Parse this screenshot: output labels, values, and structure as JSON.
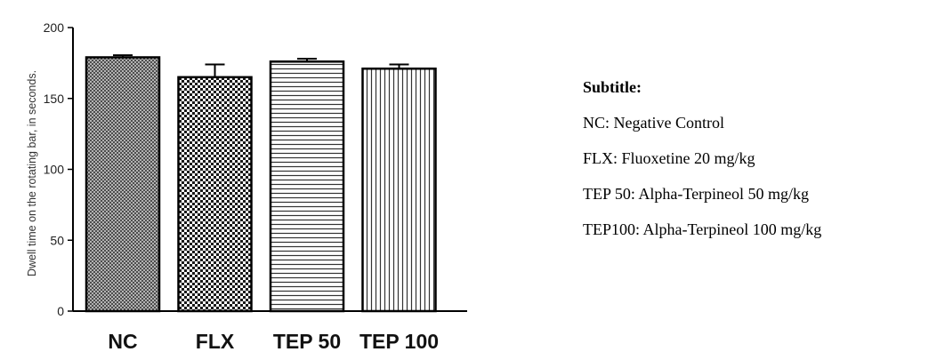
{
  "chart_data": {
    "type": "bar",
    "categories": [
      "NC",
      "FLX",
      "TEP 50",
      "TEP 100"
    ],
    "values": [
      179,
      165,
      176,
      171
    ],
    "errors": [
      1.5,
      9,
      2,
      3
    ],
    "patterns": [
      "dense-crosshatch",
      "checker",
      "horizontal-lines",
      "vertical-lines"
    ],
    "ylabel": "Dwell time on the rotating bar, in seconds.",
    "xlabel": "",
    "ylim": [
      0,
      200
    ],
    "yticks": [
      0,
      50,
      100,
      150,
      200
    ],
    "ytick_labels": [
      "0",
      "50",
      "100",
      "150",
      "200"
    ],
    "grid": false
  },
  "legend": {
    "heading": "Subtitle:",
    "entries": [
      "NC: Negative Control",
      "FLX: Fluoxetine 20 mg/kg",
      "TEP 50: Alpha-Terpineol 50 mg/kg",
      "TEP100: Alpha-Terpineol 100 mg/kg"
    ]
  }
}
